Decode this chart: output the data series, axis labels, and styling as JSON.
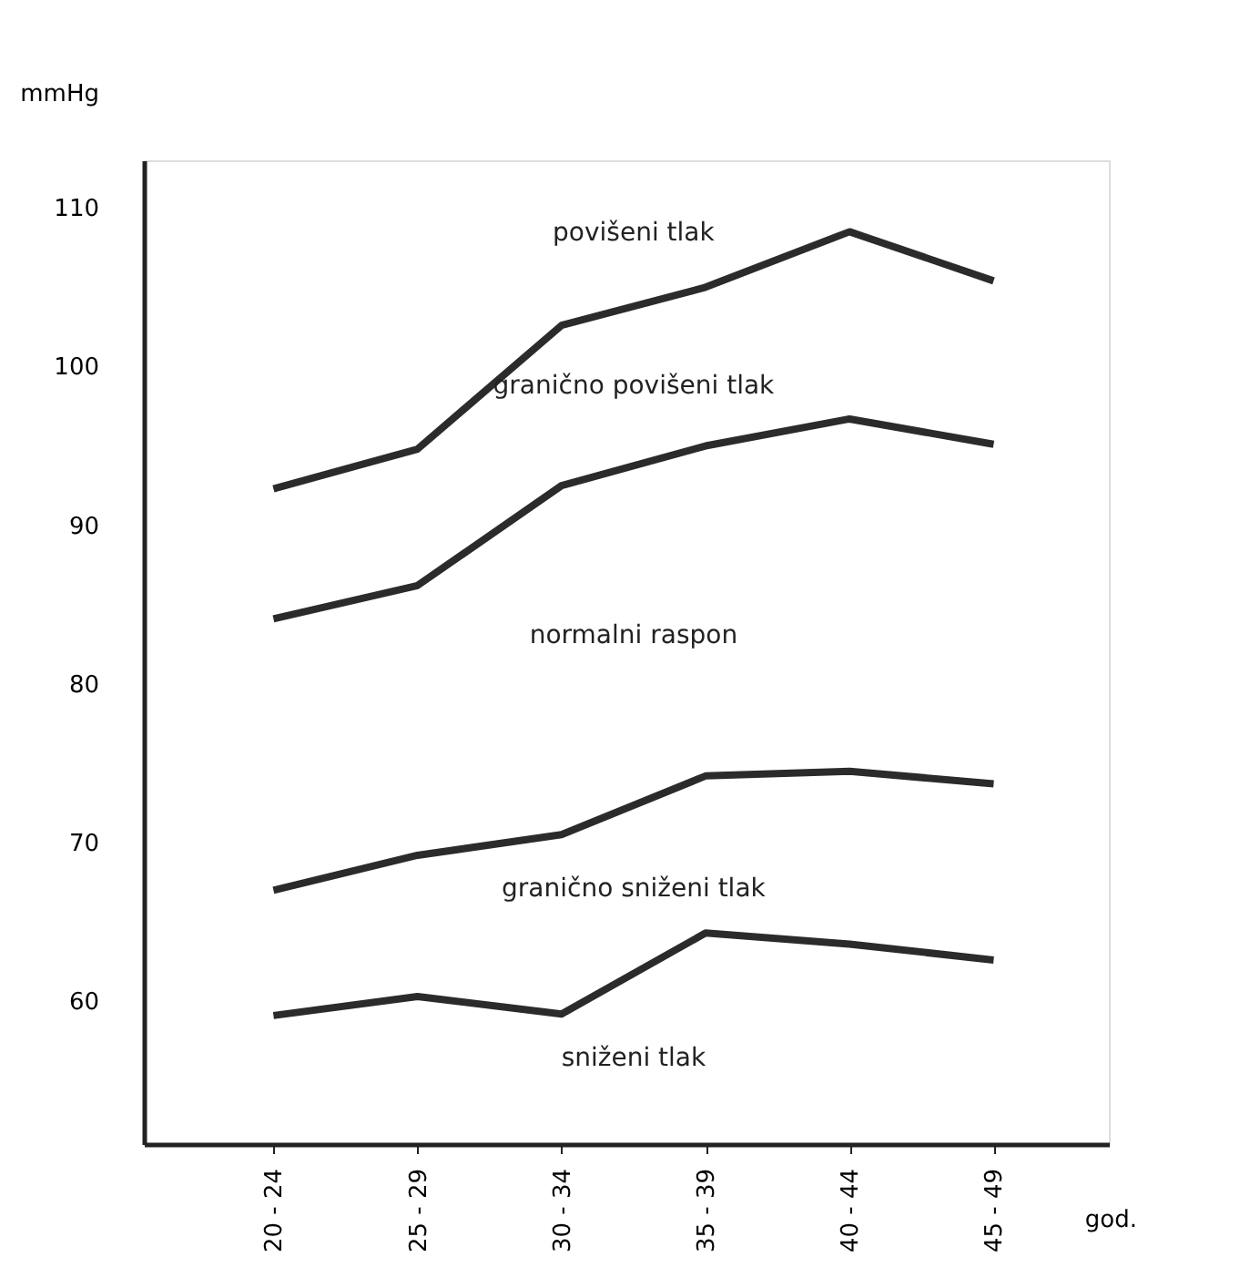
{
  "chart_data": {
    "type": "line",
    "categories": [
      "20 - 24",
      "25 - 29",
      "30 - 34",
      "35 - 39",
      "40 - 44",
      "45 - 49"
    ],
    "series": [
      {
        "color": "#2b2b2b",
        "values": [
          92.3,
          94.8,
          102.6,
          105.0,
          108.5,
          105.4
        ]
      },
      {
        "color": "#2b2b2b",
        "values": [
          84.1,
          86.2,
          92.5,
          95.0,
          96.7,
          95.1
        ]
      },
      {
        "color": "#2b2b2b",
        "values": [
          67.0,
          69.2,
          70.5,
          74.2,
          74.5,
          73.7
        ]
      },
      {
        "color": "#2b2b2b",
        "values": [
          59.1,
          60.3,
          59.2,
          64.3,
          63.6,
          62.6
        ]
      }
    ],
    "xlabel": "god.",
    "ylabel": "mmHg",
    "ylim": [
      51,
      113
    ],
    "yticks": [
      60,
      70,
      80,
      90,
      100,
      110
    ],
    "grid": false,
    "legend": false,
    "marker": "none",
    "line_style": "solid",
    "annotations": [
      "povišeni tlak",
      "granično povišeni tlak",
      "normalni raspon",
      "granično sniženi tlak",
      "sniženi tlak"
    ]
  }
}
